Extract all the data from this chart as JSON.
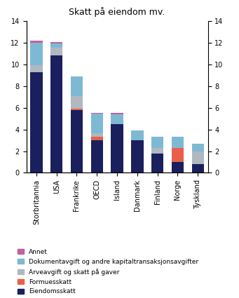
{
  "title": "Skatt på eiendom mv.",
  "categories": [
    "Storbritannia",
    "USA",
    "Frankrike",
    "OECD",
    "Island",
    "Danmark",
    "Finland",
    "Norge",
    "Tyskland"
  ],
  "series": {
    "Eiendomsskatt": [
      9.3,
      10.8,
      5.8,
      3.0,
      4.5,
      3.0,
      1.8,
      1.0,
      0.8
    ],
    "Formuesskatt": [
      0.0,
      0.0,
      0.1,
      0.35,
      0.0,
      0.0,
      0.0,
      1.3,
      0.0
    ],
    "Arveavgift og skatt på gaver": [
      0.6,
      0.7,
      1.2,
      0.3,
      0.0,
      0.0,
      0.5,
      0.0,
      1.2
    ],
    "Dokumentavgift og andre kapitaltransaksjonsavgifter": [
      2.1,
      0.4,
      1.8,
      1.8,
      0.9,
      0.9,
      1.0,
      1.0,
      0.7
    ],
    "Annet": [
      0.2,
      0.15,
      0.0,
      0.1,
      0.1,
      0.0,
      0.0,
      0.0,
      0.0
    ]
  },
  "colors": {
    "Eiendomsskatt": "#1a1f5e",
    "Formuesskatt": "#e8604c",
    "Arveavgift og skatt på gaver": "#b0b8c1",
    "Dokumentavgift og andre kapitaltransaksjonsavgifter": "#7eb9d4",
    "Annet": "#c060a0"
  },
  "ylim": [
    0,
    14
  ],
  "yticks": [
    0,
    2,
    4,
    6,
    8,
    10,
    12,
    14
  ],
  "background_color": "#ffffff",
  "legend_order": [
    "Annet",
    "Dokumentavgift og andre kapitaltransaksjonsavgifter",
    "Arveavgift og skatt på gaver",
    "Formuesskatt",
    "Eiendomsskatt"
  ]
}
